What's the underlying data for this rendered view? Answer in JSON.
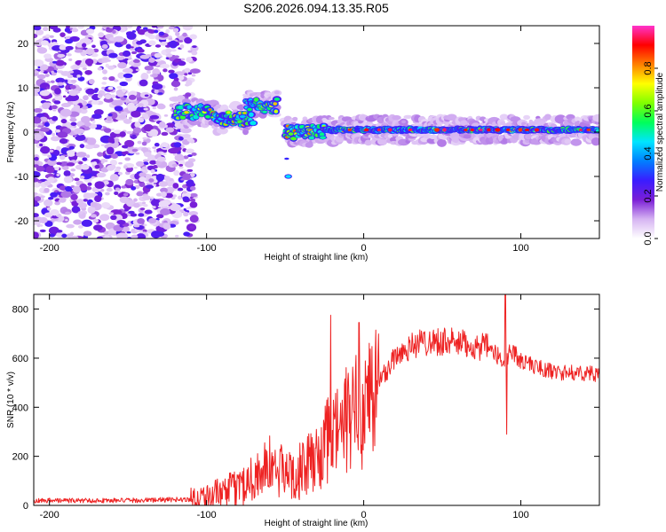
{
  "chart_data": [
    {
      "type": "heatmap",
      "title": "S206.2026.094.13.35.R05",
      "xlabel": "Height of straight line (km)",
      "ylabel": "Frequency (Hz)",
      "xlim": [
        -210,
        150
      ],
      "ylim": [
        -24,
        24
      ],
      "xticks": [
        -200,
        -100,
        0,
        100
      ],
      "yticks": [
        -20,
        -10,
        0,
        10,
        20
      ],
      "colorbar": {
        "label": "Normalized spectral amplitude",
        "range": [
          0,
          1
        ],
        "ticks": [
          0.0,
          0.2,
          0.4,
          0.6,
          0.8
        ],
        "colors": [
          "#ffffff",
          "#d6b4f2",
          "#7b1fd6",
          "#3a1cff",
          "#0080ff",
          "#00e5ff",
          "#00ff5a",
          "#80ff00",
          "#ffff00",
          "#ff8000",
          "#ff0000",
          "#ff33cc"
        ]
      },
      "features": {
        "noise_region_x": [
          -210,
          -115
        ],
        "carrier_segments": [
          {
            "x": [
              -120,
              -95
            ],
            "freq": 4.5
          },
          {
            "x": [
              -95,
              -70
            ],
            "freq": 3
          },
          {
            "x": [
              -75,
              -55
            ],
            "freq": 6
          },
          {
            "x": [
              -50,
              -25
            ],
            "freq": 0
          },
          {
            "x": [
              -25,
              150
            ],
            "freq": 0.5
          }
        ],
        "spur": {
          "x": -48,
          "freq": -10
        }
      }
    },
    {
      "type": "line",
      "xlabel": "Height of straight line (km)",
      "ylabel": "SNR (10 * v/v)",
      "xlim": [
        -210,
        150
      ],
      "ylim": [
        0,
        860
      ],
      "xticks": [
        -200,
        -100,
        0,
        100
      ],
      "yticks": [
        0,
        200,
        400,
        600,
        800
      ],
      "color": "#ee2222",
      "envelope": {
        "x": [
          -210,
          -150,
          -110,
          -95,
          -80,
          -70,
          -60,
          -50,
          -40,
          -30,
          -25,
          -20,
          -10,
          -5,
          0,
          10,
          20,
          30,
          40,
          50,
          60,
          70,
          80,
          87,
          90,
          93,
          100,
          110,
          120,
          130,
          140,
          150
        ],
        "y": [
          20,
          20,
          25,
          40,
          70,
          120,
          160,
          130,
          140,
          190,
          240,
          280,
          350,
          380,
          420,
          500,
          610,
          650,
          670,
          670,
          660,
          650,
          640,
          600,
          560,
          640,
          590,
          565,
          545,
          540,
          540,
          535
        ]
      },
      "spikes": [
        {
          "x": -21,
          "y": 775
        },
        {
          "x": -3,
          "y": 745
        },
        {
          "x": 90,
          "y": 860
        },
        {
          "x": 91,
          "y": 290
        }
      ]
    }
  ]
}
